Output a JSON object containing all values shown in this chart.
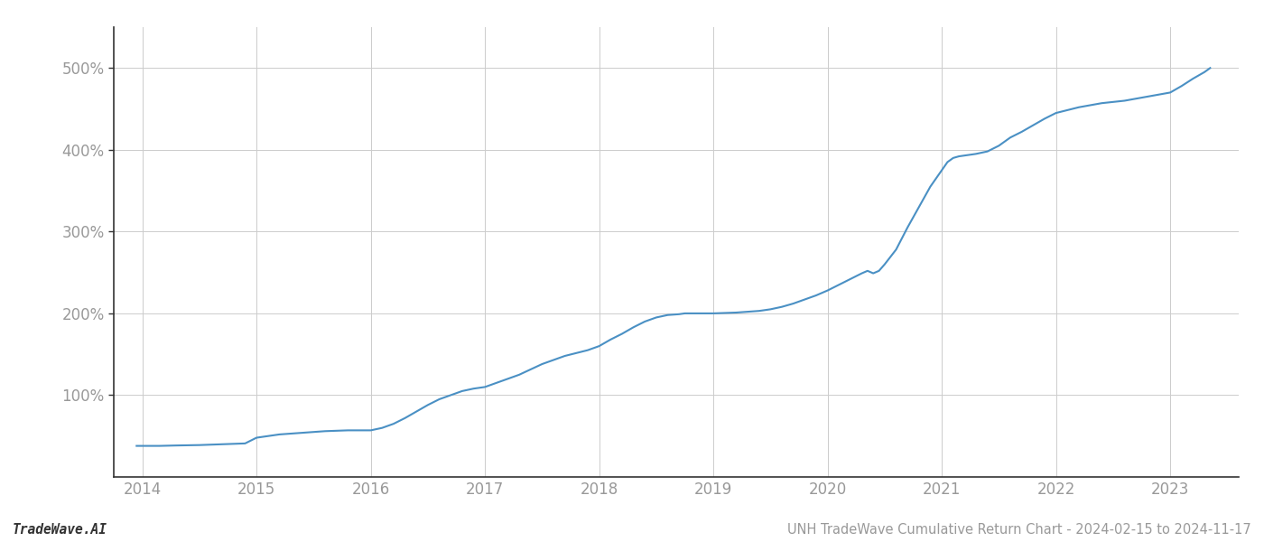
{
  "title": "",
  "footer_left": "TradeWave.AI",
  "footer_right": "UNH TradeWave Cumulative Return Chart - 2024-02-15 to 2024-11-17",
  "line_color": "#4a90c4",
  "background_color": "#ffffff",
  "grid_color": "#cccccc",
  "x_years": [
    2014,
    2015,
    2016,
    2017,
    2018,
    2019,
    2020,
    2021,
    2022,
    2023
  ],
  "data_points": [
    [
      2013.95,
      38
    ],
    [
      2014.0,
      38
    ],
    [
      2014.15,
      38
    ],
    [
      2014.3,
      38.5
    ],
    [
      2014.5,
      39
    ],
    [
      2014.7,
      40
    ],
    [
      2014.9,
      41
    ],
    [
      2015.0,
      48
    ],
    [
      2015.1,
      50
    ],
    [
      2015.2,
      52
    ],
    [
      2015.4,
      54
    ],
    [
      2015.6,
      56
    ],
    [
      2015.8,
      57
    ],
    [
      2016.0,
      57
    ],
    [
      2016.1,
      60
    ],
    [
      2016.2,
      65
    ],
    [
      2016.3,
      72
    ],
    [
      2016.4,
      80
    ],
    [
      2016.5,
      88
    ],
    [
      2016.6,
      95
    ],
    [
      2016.7,
      100
    ],
    [
      2016.8,
      105
    ],
    [
      2016.9,
      108
    ],
    [
      2017.0,
      110
    ],
    [
      2017.1,
      115
    ],
    [
      2017.3,
      125
    ],
    [
      2017.5,
      138
    ],
    [
      2017.7,
      148
    ],
    [
      2017.9,
      155
    ],
    [
      2018.0,
      160
    ],
    [
      2018.1,
      168
    ],
    [
      2018.2,
      175
    ],
    [
      2018.3,
      183
    ],
    [
      2018.4,
      190
    ],
    [
      2018.5,
      195
    ],
    [
      2018.6,
      198
    ],
    [
      2018.7,
      199
    ],
    [
      2018.75,
      200
    ],
    [
      2018.9,
      200
    ],
    [
      2019.0,
      200
    ],
    [
      2019.1,
      200.5
    ],
    [
      2019.2,
      201
    ],
    [
      2019.3,
      202
    ],
    [
      2019.4,
      203
    ],
    [
      2019.5,
      205
    ],
    [
      2019.6,
      208
    ],
    [
      2019.7,
      212
    ],
    [
      2019.8,
      217
    ],
    [
      2019.9,
      222
    ],
    [
      2020.0,
      228
    ],
    [
      2020.1,
      235
    ],
    [
      2020.2,
      242
    ],
    [
      2020.3,
      249
    ],
    [
      2020.35,
      252
    ],
    [
      2020.4,
      249
    ],
    [
      2020.45,
      252
    ],
    [
      2020.5,
      260
    ],
    [
      2020.6,
      278
    ],
    [
      2020.7,
      305
    ],
    [
      2020.8,
      330
    ],
    [
      2020.9,
      355
    ],
    [
      2021.0,
      375
    ],
    [
      2021.05,
      385
    ],
    [
      2021.1,
      390
    ],
    [
      2021.15,
      392
    ],
    [
      2021.2,
      393
    ],
    [
      2021.3,
      395
    ],
    [
      2021.4,
      398
    ],
    [
      2021.5,
      405
    ],
    [
      2021.6,
      415
    ],
    [
      2021.7,
      422
    ],
    [
      2021.8,
      430
    ],
    [
      2021.9,
      438
    ],
    [
      2022.0,
      445
    ],
    [
      2022.2,
      452
    ],
    [
      2022.4,
      457
    ],
    [
      2022.6,
      460
    ],
    [
      2022.8,
      465
    ],
    [
      2023.0,
      470
    ],
    [
      2023.1,
      478
    ],
    [
      2023.2,
      487
    ],
    [
      2023.3,
      495
    ],
    [
      2023.35,
      500
    ]
  ],
  "ylim": [
    0,
    550
  ],
  "xlim": [
    2013.75,
    2023.6
  ],
  "yticks": [
    100,
    200,
    300,
    400,
    500
  ],
  "ytick_labels": [
    "100%",
    "200%",
    "300%",
    "400%",
    "500%"
  ],
  "line_width": 1.5,
  "footer_fontsize": 10.5,
  "tick_fontsize": 12,
  "tick_color": "#999999",
  "spine_color": "#333333",
  "footer_left_style": "bold"
}
